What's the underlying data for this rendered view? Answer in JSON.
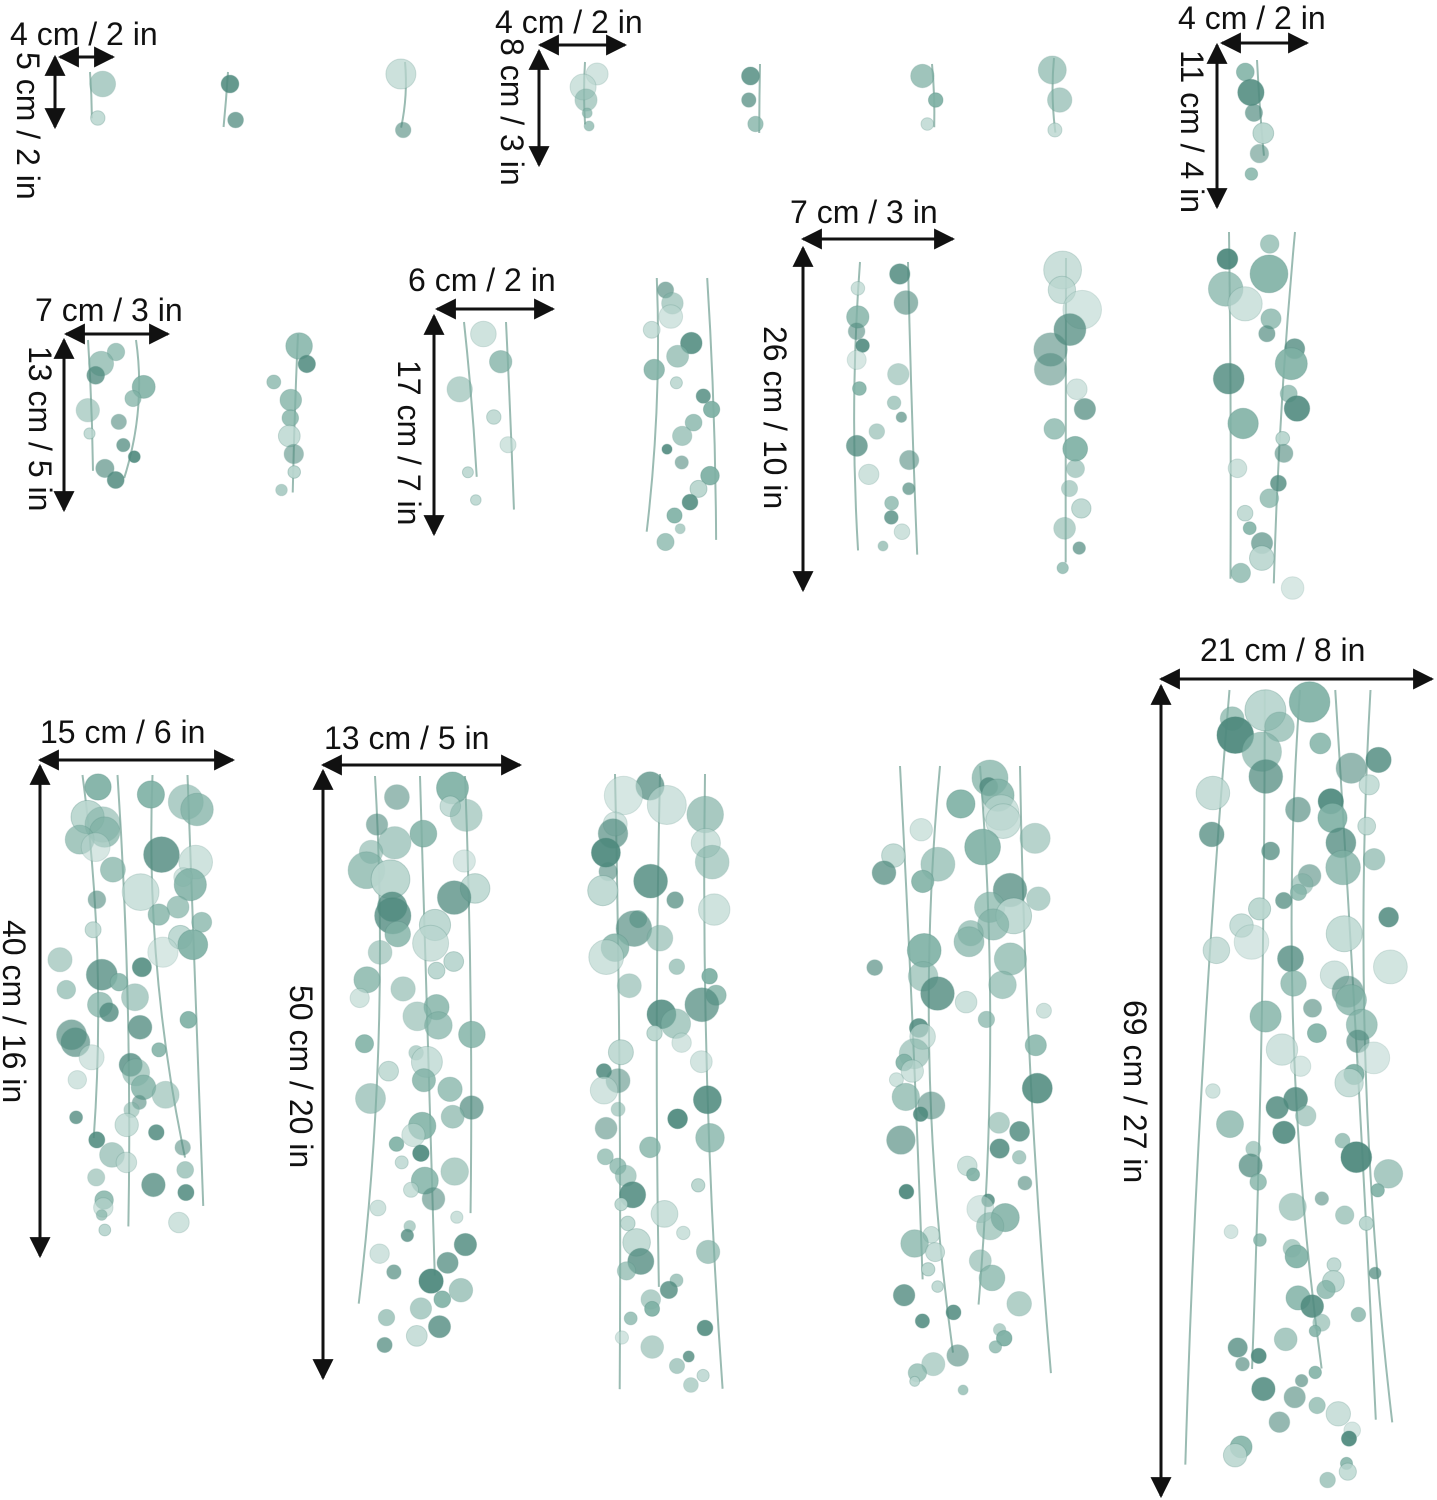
{
  "theme": {
    "background": "#ffffff",
    "text_color": "#111111",
    "arrow_color": "#111111",
    "leaf_dark": "#4f8a7e",
    "leaf_mid": "#7fb1a5",
    "leaf_light": "#b9d6cf",
    "stem_color": "#6f9e92"
  },
  "dimensions": {
    "d01": {
      "width": "4 cm / 2 in",
      "height": "5 cm / 2 in"
    },
    "d02": {
      "width": "4 cm / 2 in",
      "height": "8 cm / 3 in"
    },
    "d03": {
      "width": "4 cm / 2 in",
      "height": "11 cm / 4 in"
    },
    "d04": {
      "width": "7 cm / 3 in",
      "height": "13 cm / 5 in"
    },
    "d05": {
      "width": "6 cm / 2 in",
      "height": "17 cm / 7 in"
    },
    "d06": {
      "width": "7 cm / 3 in",
      "height": "26 cm / 10 in"
    },
    "d07": {
      "width": "15 cm / 6 in",
      "height": "40 cm / 16 in"
    },
    "d08": {
      "width": "13 cm / 5 in",
      "height": "50 cm / 20 in"
    },
    "d09": {
      "width": "21 cm / 8 in",
      "height": "69 cm / 27 in"
    }
  }
}
